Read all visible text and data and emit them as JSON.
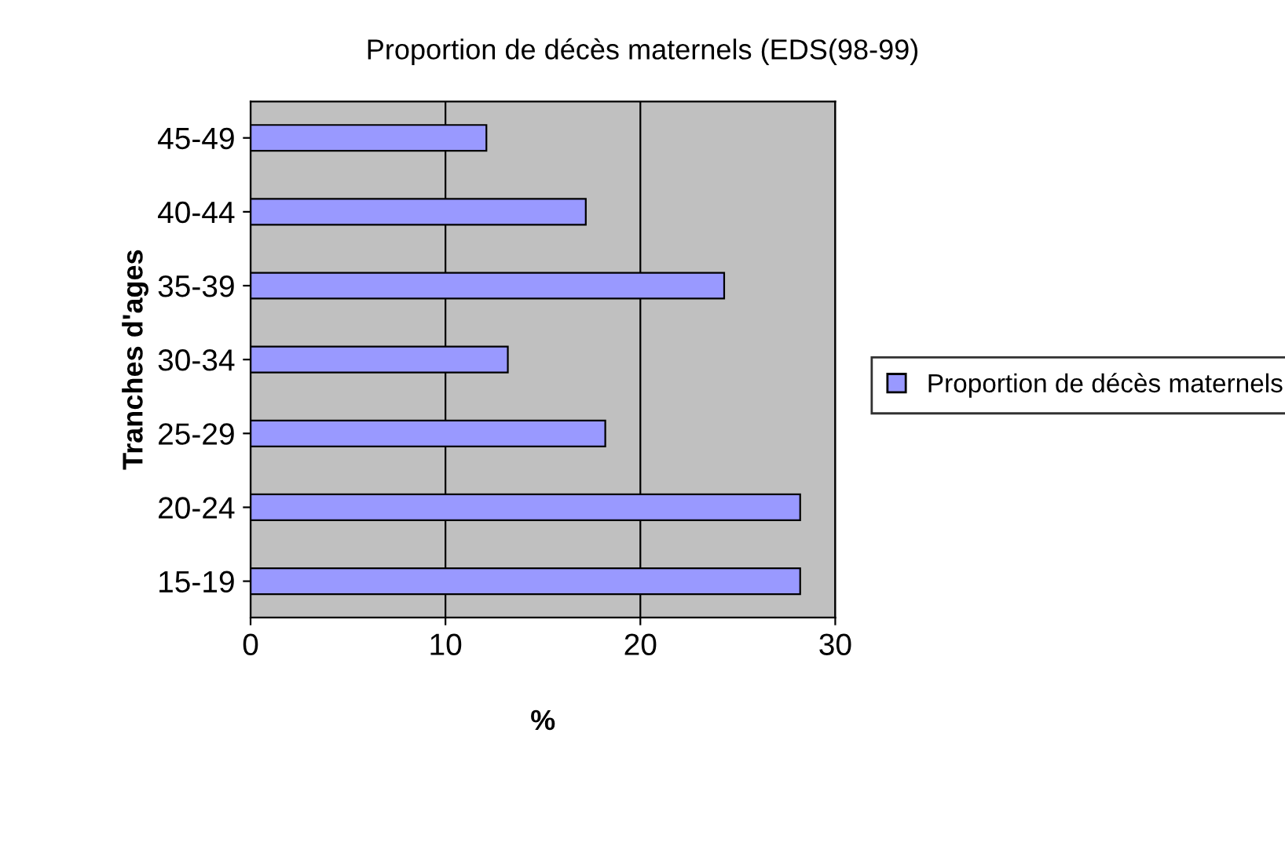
{
  "chart_data": {
    "type": "bar",
    "orientation": "horizontal",
    "title": "Proportion de décès maternels (EDS(98-99)",
    "xlabel": "%",
    "ylabel": "Tranches d'ages",
    "categories": [
      "45-49",
      "40-44",
      "35-39",
      "30-34",
      "25-29",
      "20-24",
      "15-19"
    ],
    "series": [
      {
        "name": "Proportion de décès maternels",
        "color": "#9999ff",
        "values": [
          12.1,
          17.2,
          24.3,
          13.2,
          18.2,
          28.2,
          28.2
        ]
      }
    ],
    "xlim": [
      0,
      30
    ],
    "xticks": [
      0,
      10,
      20,
      30
    ],
    "grid": "x",
    "legend": "right"
  }
}
